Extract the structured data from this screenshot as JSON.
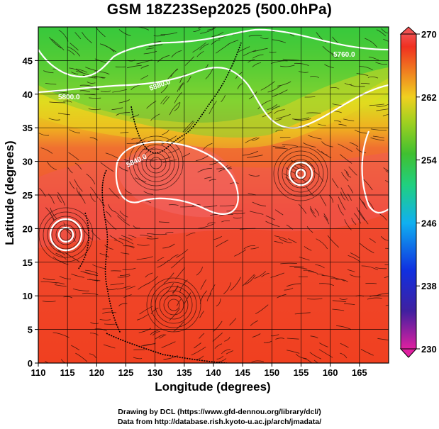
{
  "title": "GSM 18Z23Sep2025 (500.0hPa)",
  "axes": {
    "xlabel": "Longitude (degrees)",
    "ylabel": "Latitude  (degrees)",
    "xticks": [
      "110",
      "115",
      "120",
      "125",
      "130",
      "135",
      "140",
      "145",
      "150",
      "155",
      "160",
      "165"
    ],
    "yticks": [
      "0",
      "5",
      "10",
      "15",
      "20",
      "25",
      "30",
      "35",
      "40",
      "45"
    ],
    "xlim": [
      110,
      170
    ],
    "ylim": [
      0,
      50
    ]
  },
  "colorbar": {
    "ticks": [
      "270",
      "262",
      "254",
      "246",
      "238",
      "230"
    ],
    "range": [
      230,
      270
    ],
    "colors": [
      "#e0209a",
      "#3a2aa0",
      "#1040f0",
      "#10b0f0",
      "#20d0a0",
      "#40c040",
      "#90d020",
      "#f0e020",
      "#f08020",
      "#f03020",
      "#f05050"
    ]
  },
  "contour_labels": [
    "5760.0",
    "5800.0",
    "5840.0",
    "5880.0"
  ],
  "credits": {
    "line1": "Drawing by DCL (https://www.gfd-dennou.org/library/dcl/)",
    "line2": "Data from http://database.rish.kyoto-u.ac.jp/arch/jmadata/"
  }
}
